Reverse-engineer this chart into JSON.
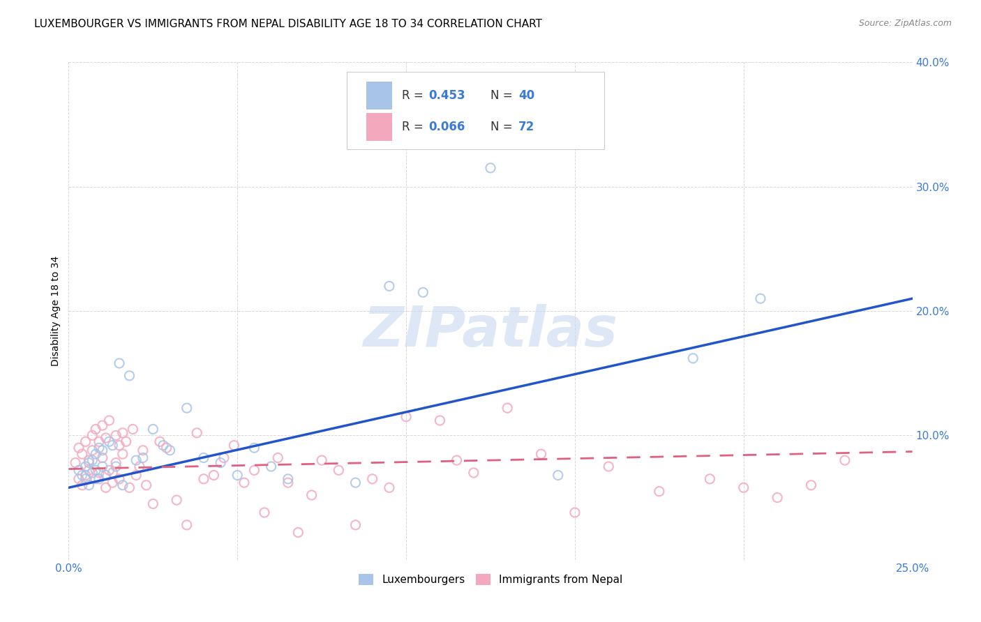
{
  "title": "LUXEMBOURGER VS IMMIGRANTS FROM NEPAL DISABILITY AGE 18 TO 34 CORRELATION CHART",
  "source": "Source: ZipAtlas.com",
  "ylabel": "Disability Age 18 to 34",
  "xlim": [
    0.0,
    0.25
  ],
  "ylim": [
    0.0,
    0.4
  ],
  "xticks": [
    0.0,
    0.05,
    0.1,
    0.15,
    0.2,
    0.25
  ],
  "yticks": [
    0.0,
    0.1,
    0.2,
    0.3,
    0.4
  ],
  "blue_R": 0.453,
  "blue_N": 40,
  "pink_R": 0.066,
  "pink_N": 72,
  "blue_color": "#a8c4e8",
  "pink_color": "#f4a8be",
  "blue_line_color": "#2255cc",
  "pink_line_color": "#e06080",
  "accent_blue": "#3a7bd5",
  "legend_label_blue": "Luxembourgers",
  "legend_label_pink": "Immigrants from Nepal",
  "blue_scatter_x": [
    0.003,
    0.004,
    0.005,
    0.005,
    0.006,
    0.006,
    0.007,
    0.007,
    0.008,
    0.008,
    0.009,
    0.009,
    0.01,
    0.01,
    0.011,
    0.012,
    0.013,
    0.014,
    0.015,
    0.016,
    0.018,
    0.02,
    0.022,
    0.025,
    0.028,
    0.03,
    0.035,
    0.04,
    0.045,
    0.05,
    0.055,
    0.06,
    0.065,
    0.085,
    0.095,
    0.105,
    0.125,
    0.145,
    0.185,
    0.205
  ],
  "blue_scatter_y": [
    0.072,
    0.068,
    0.075,
    0.065,
    0.078,
    0.06,
    0.08,
    0.07,
    0.085,
    0.072,
    0.09,
    0.065,
    0.088,
    0.075,
    0.068,
    0.095,
    0.092,
    0.075,
    0.158,
    0.06,
    0.148,
    0.08,
    0.082,
    0.105,
    0.092,
    0.088,
    0.122,
    0.082,
    0.078,
    0.068,
    0.09,
    0.075,
    0.065,
    0.062,
    0.22,
    0.215,
    0.315,
    0.068,
    0.162,
    0.21
  ],
  "pink_scatter_x": [
    0.002,
    0.003,
    0.003,
    0.004,
    0.004,
    0.005,
    0.005,
    0.006,
    0.006,
    0.007,
    0.007,
    0.008,
    0.008,
    0.009,
    0.009,
    0.01,
    0.01,
    0.011,
    0.011,
    0.012,
    0.012,
    0.013,
    0.013,
    0.014,
    0.014,
    0.015,
    0.015,
    0.016,
    0.016,
    0.017,
    0.018,
    0.019,
    0.02,
    0.021,
    0.022,
    0.023,
    0.025,
    0.027,
    0.029,
    0.032,
    0.035,
    0.038,
    0.04,
    0.043,
    0.046,
    0.049,
    0.052,
    0.055,
    0.058,
    0.062,
    0.065,
    0.068,
    0.072,
    0.075,
    0.08,
    0.085,
    0.09,
    0.095,
    0.1,
    0.11,
    0.115,
    0.12,
    0.13,
    0.14,
    0.15,
    0.16,
    0.175,
    0.19,
    0.2,
    0.21,
    0.22,
    0.23
  ],
  "pink_scatter_y": [
    0.078,
    0.065,
    0.09,
    0.06,
    0.085,
    0.068,
    0.095,
    0.072,
    0.08,
    0.088,
    0.1,
    0.065,
    0.105,
    0.07,
    0.095,
    0.082,
    0.108,
    0.058,
    0.098,
    0.112,
    0.072,
    0.062,
    0.07,
    0.1,
    0.078,
    0.092,
    0.065,
    0.102,
    0.085,
    0.095,
    0.058,
    0.105,
    0.068,
    0.075,
    0.088,
    0.06,
    0.045,
    0.095,
    0.09,
    0.048,
    0.028,
    0.102,
    0.065,
    0.068,
    0.082,
    0.092,
    0.062,
    0.072,
    0.038,
    0.082,
    0.062,
    0.022,
    0.052,
    0.08,
    0.072,
    0.028,
    0.065,
    0.058,
    0.115,
    0.112,
    0.08,
    0.07,
    0.122,
    0.085,
    0.038,
    0.075,
    0.055,
    0.065,
    0.058,
    0.05,
    0.06,
    0.08
  ],
  "blue_trend_x": [
    0.0,
    0.25
  ],
  "blue_trend_y_start": 0.058,
  "blue_trend_y_end": 0.21,
  "pink_trend_x": [
    0.0,
    0.25
  ],
  "pink_trend_y_start": 0.073,
  "pink_trend_y_end": 0.087,
  "background_color": "#ffffff",
  "grid_color": "#d8d8d8",
  "title_fontsize": 11,
  "axis_label_fontsize": 10,
  "tick_fontsize": 11,
  "watermark_text": "ZIPatlas",
  "watermark_color": "#c8d8f0",
  "watermark_fontsize": 58
}
